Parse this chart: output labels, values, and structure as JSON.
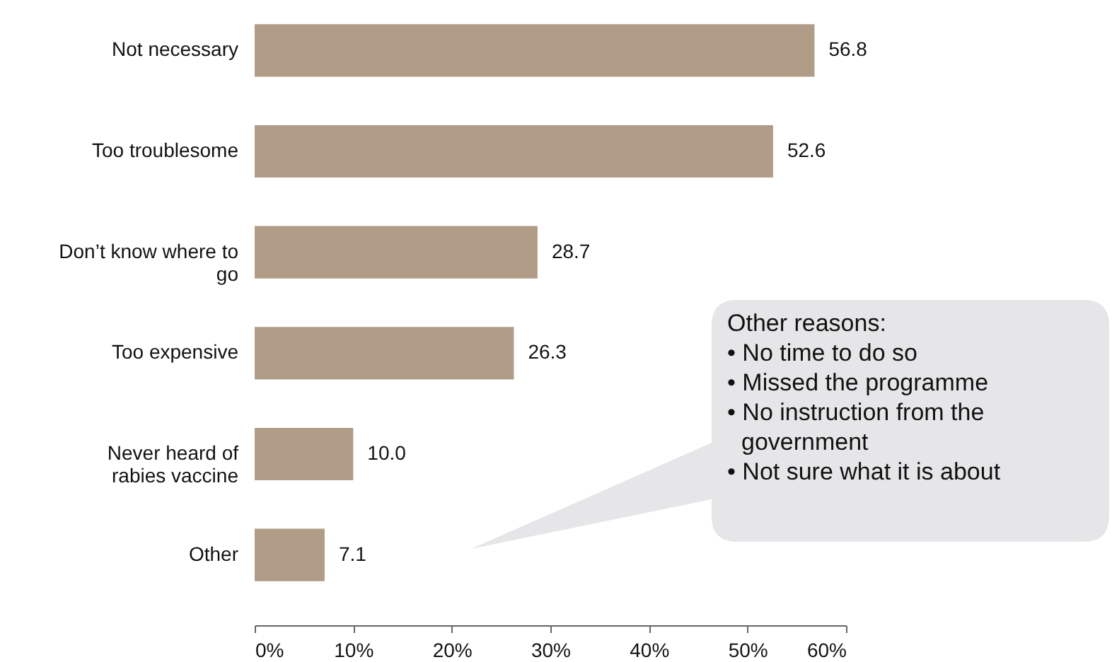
{
  "chart_data": {
    "type": "bar",
    "orientation": "horizontal",
    "categories": [
      "Not necessary",
      "Too troublesome",
      "Don’t know where to go",
      "Too expensive",
      "Never heard of rabies vaccine",
      "Other"
    ],
    "values": [
      56.8,
      52.6,
      28.7,
      26.3,
      10.0,
      7.1
    ],
    "value_labels": [
      "56.8",
      "52.6",
      "28.7",
      "26.3",
      "10.0",
      "7.1"
    ],
    "color": "#b09c87",
    "xlim": [
      0,
      60
    ],
    "xticks": [
      {
        "value": 0,
        "label": "0%"
      },
      {
        "value": 10,
        "label": "10%"
      },
      {
        "value": 20,
        "label": "20%"
      },
      {
        "value": 30,
        "label": "30%"
      },
      {
        "value": 40,
        "label": "40%"
      },
      {
        "value": 50,
        "label": "50%"
      },
      {
        "value": 60,
        "label": "60%"
      }
    ],
    "grid": false,
    "annotations": [
      "Other reasons:\n• No time to do so\n• Missed the programme\n• No instruction from the government\n• Not sure what it is about"
    ]
  }
}
